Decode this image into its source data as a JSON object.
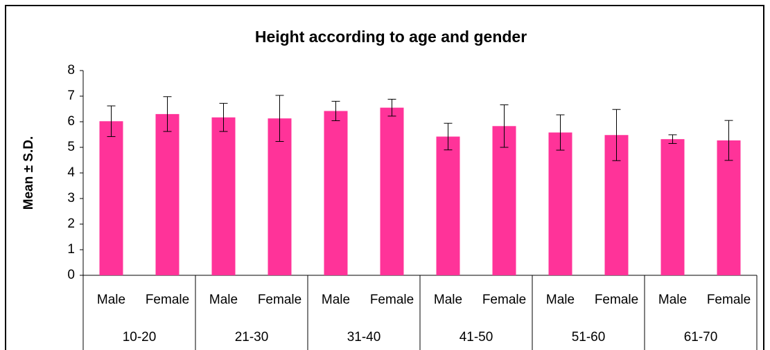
{
  "chart_data": {
    "type": "bar",
    "title": "Height according to age and gender",
    "y_label": "Mean ± S.D.",
    "categories": [
      "Male",
      "Female",
      "Male",
      "Female",
      "Male",
      "Female",
      "Male",
      "Female",
      "Male",
      "Female",
      "Male",
      "Female"
    ],
    "groups": [
      "10-20",
      "21-30",
      "31-40",
      "41-50",
      "51-60",
      "61-70"
    ],
    "values": [
      6.02,
      6.3,
      6.17,
      6.13,
      6.42,
      6.55,
      5.42,
      5.83,
      5.58,
      5.48,
      5.32,
      5.27
    ],
    "errors": [
      0.6,
      0.68,
      0.55,
      0.9,
      0.38,
      0.33,
      0.52,
      0.83,
      0.69,
      1.0,
      0.17,
      0.78
    ],
    "color": "#ff3399",
    "ylim": [
      0,
      8
    ],
    "yticks": [
      0,
      1,
      2,
      3,
      4,
      5,
      6,
      7,
      8
    ],
    "grid": false
  }
}
